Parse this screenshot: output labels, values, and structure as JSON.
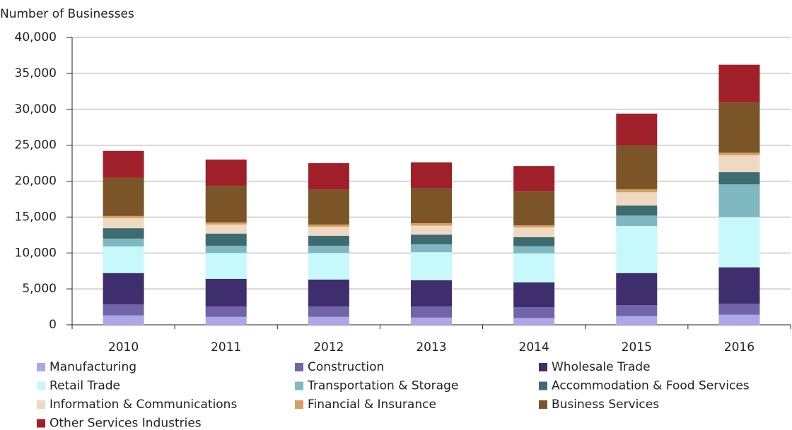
{
  "chart_data": {
    "type": "stacked-bar",
    "y_label": "Number of Businesses",
    "categories": [
      "2010",
      "2011",
      "2012",
      "2013",
      "2014",
      "2015",
      "2016"
    ],
    "series": [
      {
        "name": "Manufacturing",
        "color": "#aaa8e8",
        "values": [
          1300,
          1100,
          1100,
          1000,
          950,
          1200,
          1400
        ]
      },
      {
        "name": "Construction",
        "color": "#7264a8",
        "values": [
          1550,
          1450,
          1450,
          1550,
          1500,
          1550,
          1550
        ]
      },
      {
        "name": "Wholesale Trade",
        "color": "#3e2e6e",
        "values": [
          4350,
          3850,
          3750,
          3650,
          3450,
          4450,
          5050
        ]
      },
      {
        "name": "Retail Trade",
        "color": "#c6f8fc",
        "values": [
          3700,
          3600,
          3700,
          3900,
          4050,
          6550,
          7000
        ]
      },
      {
        "name": "Transportation & Storage",
        "color": "#7fb8c0",
        "values": [
          1100,
          1000,
          1000,
          1100,
          1000,
          1450,
          4550
        ]
      },
      {
        "name": "Accommodation & Food Services",
        "color": "#3d6b70",
        "values": [
          1450,
          1700,
          1400,
          1350,
          1250,
          1400,
          1700
        ]
      },
      {
        "name": "Information & Communications",
        "color": "#efd9c2",
        "values": [
          1400,
          1250,
          1250,
          1250,
          1350,
          1850,
          2350
        ]
      },
      {
        "name": "Financial & Insurance",
        "color": "#d5a05d",
        "values": [
          300,
          300,
          300,
          350,
          300,
          400,
          350
        ]
      },
      {
        "name": "Business Services",
        "color": "#7b5428",
        "values": [
          5300,
          5100,
          4850,
          4850,
          4700,
          6100,
          7000
        ]
      },
      {
        "name": "Other Services Industries",
        "color": "#a0202a",
        "values": [
          3750,
          3650,
          3700,
          3600,
          3550,
          4450,
          5250
        ]
      }
    ],
    "ylim": [
      0,
      40000
    ],
    "yticks": [
      0,
      {
        "value": 5000,
        "label": "5,000"
      },
      {
        "value": 10000,
        "label": "10,000"
      },
      {
        "value": 15000,
        "label": "15,000"
      },
      {
        "value": 20000,
        "label": "20,000"
      },
      {
        "value": 25000,
        "label": "25,000"
      },
      {
        "value": 30000,
        "label": "30,000"
      },
      {
        "value": 35000,
        "label": "35,000"
      },
      {
        "value": 40000,
        "label": "40,000"
      }
    ],
    "grid": true
  }
}
